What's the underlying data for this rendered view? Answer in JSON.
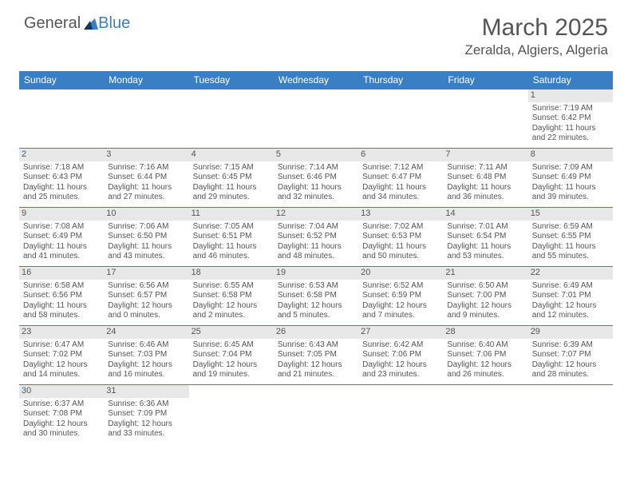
{
  "logo": {
    "general": "General",
    "blue": "Blue"
  },
  "title": "March 2025",
  "location": "Zeralda, Algiers, Algeria",
  "colors": {
    "accent": "#3a7fc4",
    "text": "#555555",
    "dayband": "#e8e8e8"
  },
  "weekdays": [
    "Sunday",
    "Monday",
    "Tuesday",
    "Wednesday",
    "Thursday",
    "Friday",
    "Saturday"
  ],
  "weeks": [
    [
      {
        "n": "",
        "sr": "",
        "ss": "",
        "d1": "",
        "d2": ""
      },
      {
        "n": "",
        "sr": "",
        "ss": "",
        "d1": "",
        "d2": ""
      },
      {
        "n": "",
        "sr": "",
        "ss": "",
        "d1": "",
        "d2": ""
      },
      {
        "n": "",
        "sr": "",
        "ss": "",
        "d1": "",
        "d2": ""
      },
      {
        "n": "",
        "sr": "",
        "ss": "",
        "d1": "",
        "d2": ""
      },
      {
        "n": "",
        "sr": "",
        "ss": "",
        "d1": "",
        "d2": ""
      },
      {
        "n": "1",
        "sr": "Sunrise: 7:19 AM",
        "ss": "Sunset: 6:42 PM",
        "d1": "Daylight: 11 hours",
        "d2": "and 22 minutes."
      }
    ],
    [
      {
        "n": "2",
        "sr": "Sunrise: 7:18 AM",
        "ss": "Sunset: 6:43 PM",
        "d1": "Daylight: 11 hours",
        "d2": "and 25 minutes."
      },
      {
        "n": "3",
        "sr": "Sunrise: 7:16 AM",
        "ss": "Sunset: 6:44 PM",
        "d1": "Daylight: 11 hours",
        "d2": "and 27 minutes."
      },
      {
        "n": "4",
        "sr": "Sunrise: 7:15 AM",
        "ss": "Sunset: 6:45 PM",
        "d1": "Daylight: 11 hours",
        "d2": "and 29 minutes."
      },
      {
        "n": "5",
        "sr": "Sunrise: 7:14 AM",
        "ss": "Sunset: 6:46 PM",
        "d1": "Daylight: 11 hours",
        "d2": "and 32 minutes."
      },
      {
        "n": "6",
        "sr": "Sunrise: 7:12 AM",
        "ss": "Sunset: 6:47 PM",
        "d1": "Daylight: 11 hours",
        "d2": "and 34 minutes."
      },
      {
        "n": "7",
        "sr": "Sunrise: 7:11 AM",
        "ss": "Sunset: 6:48 PM",
        "d1": "Daylight: 11 hours",
        "d2": "and 36 minutes."
      },
      {
        "n": "8",
        "sr": "Sunrise: 7:09 AM",
        "ss": "Sunset: 6:49 PM",
        "d1": "Daylight: 11 hours",
        "d2": "and 39 minutes."
      }
    ],
    [
      {
        "n": "9",
        "sr": "Sunrise: 7:08 AM",
        "ss": "Sunset: 6:49 PM",
        "d1": "Daylight: 11 hours",
        "d2": "and 41 minutes."
      },
      {
        "n": "10",
        "sr": "Sunrise: 7:06 AM",
        "ss": "Sunset: 6:50 PM",
        "d1": "Daylight: 11 hours",
        "d2": "and 43 minutes."
      },
      {
        "n": "11",
        "sr": "Sunrise: 7:05 AM",
        "ss": "Sunset: 6:51 PM",
        "d1": "Daylight: 11 hours",
        "d2": "and 46 minutes."
      },
      {
        "n": "12",
        "sr": "Sunrise: 7:04 AM",
        "ss": "Sunset: 6:52 PM",
        "d1": "Daylight: 11 hours",
        "d2": "and 48 minutes."
      },
      {
        "n": "13",
        "sr": "Sunrise: 7:02 AM",
        "ss": "Sunset: 6:53 PM",
        "d1": "Daylight: 11 hours",
        "d2": "and 50 minutes."
      },
      {
        "n": "14",
        "sr": "Sunrise: 7:01 AM",
        "ss": "Sunset: 6:54 PM",
        "d1": "Daylight: 11 hours",
        "d2": "and 53 minutes."
      },
      {
        "n": "15",
        "sr": "Sunrise: 6:59 AM",
        "ss": "Sunset: 6:55 PM",
        "d1": "Daylight: 11 hours",
        "d2": "and 55 minutes."
      }
    ],
    [
      {
        "n": "16",
        "sr": "Sunrise: 6:58 AM",
        "ss": "Sunset: 6:56 PM",
        "d1": "Daylight: 11 hours",
        "d2": "and 58 minutes."
      },
      {
        "n": "17",
        "sr": "Sunrise: 6:56 AM",
        "ss": "Sunset: 6:57 PM",
        "d1": "Daylight: 12 hours",
        "d2": "and 0 minutes."
      },
      {
        "n": "18",
        "sr": "Sunrise: 6:55 AM",
        "ss": "Sunset: 6:58 PM",
        "d1": "Daylight: 12 hours",
        "d2": "and 2 minutes."
      },
      {
        "n": "19",
        "sr": "Sunrise: 6:53 AM",
        "ss": "Sunset: 6:58 PM",
        "d1": "Daylight: 12 hours",
        "d2": "and 5 minutes."
      },
      {
        "n": "20",
        "sr": "Sunrise: 6:52 AM",
        "ss": "Sunset: 6:59 PM",
        "d1": "Daylight: 12 hours",
        "d2": "and 7 minutes."
      },
      {
        "n": "21",
        "sr": "Sunrise: 6:50 AM",
        "ss": "Sunset: 7:00 PM",
        "d1": "Daylight: 12 hours",
        "d2": "and 9 minutes."
      },
      {
        "n": "22",
        "sr": "Sunrise: 6:49 AM",
        "ss": "Sunset: 7:01 PM",
        "d1": "Daylight: 12 hours",
        "d2": "and 12 minutes."
      }
    ],
    [
      {
        "n": "23",
        "sr": "Sunrise: 6:47 AM",
        "ss": "Sunset: 7:02 PM",
        "d1": "Daylight: 12 hours",
        "d2": "and 14 minutes."
      },
      {
        "n": "24",
        "sr": "Sunrise: 6:46 AM",
        "ss": "Sunset: 7:03 PM",
        "d1": "Daylight: 12 hours",
        "d2": "and 16 minutes."
      },
      {
        "n": "25",
        "sr": "Sunrise: 6:45 AM",
        "ss": "Sunset: 7:04 PM",
        "d1": "Daylight: 12 hours",
        "d2": "and 19 minutes."
      },
      {
        "n": "26",
        "sr": "Sunrise: 6:43 AM",
        "ss": "Sunset: 7:05 PM",
        "d1": "Daylight: 12 hours",
        "d2": "and 21 minutes."
      },
      {
        "n": "27",
        "sr": "Sunrise: 6:42 AM",
        "ss": "Sunset: 7:06 PM",
        "d1": "Daylight: 12 hours",
        "d2": "and 23 minutes."
      },
      {
        "n": "28",
        "sr": "Sunrise: 6:40 AM",
        "ss": "Sunset: 7:06 PM",
        "d1": "Daylight: 12 hours",
        "d2": "and 26 minutes."
      },
      {
        "n": "29",
        "sr": "Sunrise: 6:39 AM",
        "ss": "Sunset: 7:07 PM",
        "d1": "Daylight: 12 hours",
        "d2": "and 28 minutes."
      }
    ],
    [
      {
        "n": "30",
        "sr": "Sunrise: 6:37 AM",
        "ss": "Sunset: 7:08 PM",
        "d1": "Daylight: 12 hours",
        "d2": "and 30 minutes."
      },
      {
        "n": "31",
        "sr": "Sunrise: 6:36 AM",
        "ss": "Sunset: 7:09 PM",
        "d1": "Daylight: 12 hours",
        "d2": "and 33 minutes."
      },
      {
        "n": "",
        "sr": "",
        "ss": "",
        "d1": "",
        "d2": ""
      },
      {
        "n": "",
        "sr": "",
        "ss": "",
        "d1": "",
        "d2": ""
      },
      {
        "n": "",
        "sr": "",
        "ss": "",
        "d1": "",
        "d2": ""
      },
      {
        "n": "",
        "sr": "",
        "ss": "",
        "d1": "",
        "d2": ""
      },
      {
        "n": "",
        "sr": "",
        "ss": "",
        "d1": "",
        "d2": ""
      }
    ]
  ]
}
